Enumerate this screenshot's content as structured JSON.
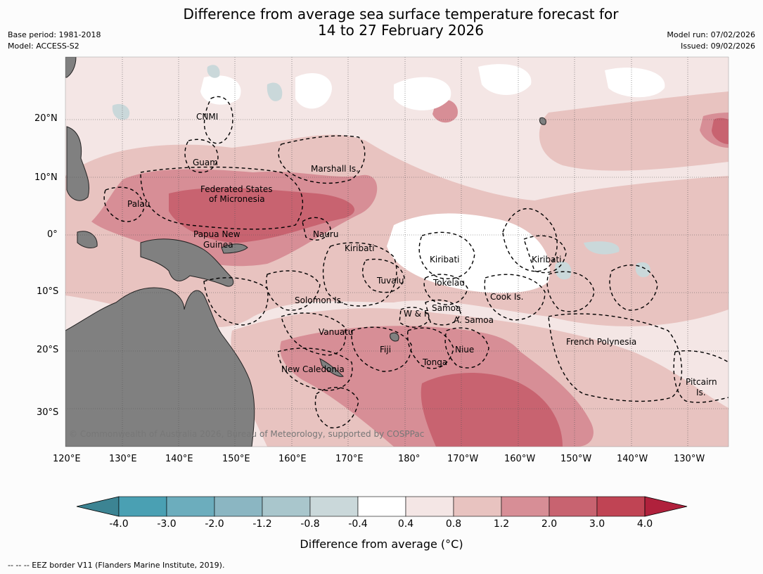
{
  "title": {
    "line1": "Difference from average sea surface temperature forecast for",
    "line2": "14 to 27 February 2026"
  },
  "meta": {
    "base_period": "Base period: 1981-2018",
    "model": "Model: ACCESS-S2",
    "model_run": "Model run: 07/02/2026",
    "issued": "Issued: 09/02/2026"
  },
  "copyright": "© Commonwealth of Australia 2026, Bureau of Meteorology, supported by COSPPac",
  "lon_ticks": [
    "120°E",
    "130°E",
    "140°E",
    "150°E",
    "160°E",
    "170°E",
    "180°",
    "170°W",
    "160°W",
    "150°W",
    "140°W",
    "130°W"
  ],
  "lat_ticks": [
    "20°N",
    "10°N",
    "0°",
    "10°S",
    "20°S",
    "30°S"
  ],
  "region_labels": [
    "CNMI",
    "Guam",
    "Marshall Is.",
    "Federated States",
    "of Micronesia",
    "Palau",
    "Papua New",
    "Guinea",
    "Nauru",
    "Kiribati",
    "Kiribati",
    "Kiribati",
    "Tuvalu",
    "Tokelau",
    "Cook Is.",
    "Solomon Is.",
    "Samoa",
    "W & F",
    "A. Samoa",
    "Vanuatu",
    "Fiji",
    "Niue",
    "Tonga",
    "French Polynesia",
    "New Caledonia",
    "Pitcairn",
    "Is."
  ],
  "colorbar": {
    "ticks": [
      "-4.0",
      "-3.0",
      "-2.0",
      "-1.2",
      "-0.8",
      "-0.4",
      "0.4",
      "0.8",
      "1.2",
      "2.0",
      "3.0",
      "4.0"
    ],
    "colors": [
      "#3c8493",
      "#4aa0b3",
      "#6cadbd",
      "#8bb6c2",
      "#a9c6cc",
      "#cad8da",
      "#ffffff",
      "#f4e6e5",
      "#e8c3c0",
      "#d78e96",
      "#c86370",
      "#c04454",
      "#b0213c"
    ],
    "title": "Difference from average (°C)"
  },
  "legend_note": "--  --  -- EEZ border V11 (Flanders Marine Institute, 2019).",
  "chart_data": {
    "type": "heatmap",
    "title": "Difference from average sea surface temperature forecast for 14 to 27 February 2026",
    "units": "°C",
    "lon_range_degE": [
      120,
      235
    ],
    "lat_range_deg": [
      -36,
      31
    ],
    "levels": [
      -4.0,
      -3.0,
      -2.0,
      -1.2,
      -0.8,
      -0.4,
      0.4,
      0.8,
      1.2,
      2.0,
      3.0,
      4.0
    ],
    "features": [
      {
        "region": "Federated States of Micronesia to Nauru",
        "range": "1.2 to 2.0"
      },
      {
        "region": "Fiji / Tonga / Niue",
        "range": "1.2 to 2.0"
      },
      {
        "region": "South of Tonga near 30°S",
        "range": "2.0 to 3.0"
      },
      {
        "region": "Scattered patches north of 10°N",
        "range": "-0.8 to -0.4"
      }
    ]
  }
}
